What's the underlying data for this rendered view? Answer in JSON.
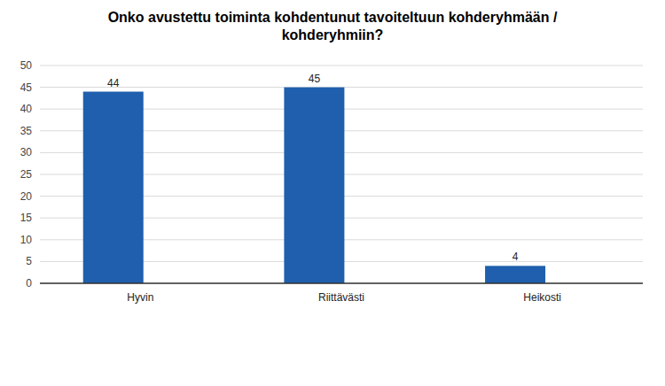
{
  "chart_data": {
    "type": "bar",
    "title": "Onko avustettu toiminta kohdentunut tavoiteltuun kohderyhmään / kohderyhmiin?",
    "categories": [
      "Hyvin",
      "Riittävästi",
      "Heikosti"
    ],
    "values": [
      44,
      45,
      4
    ],
    "color": "#1f5fad",
    "ylim": [
      0,
      50
    ],
    "yticks": [
      0,
      5,
      10,
      15,
      20,
      25,
      30,
      35,
      40,
      45,
      50
    ],
    "grid": true,
    "data_labels": true
  }
}
